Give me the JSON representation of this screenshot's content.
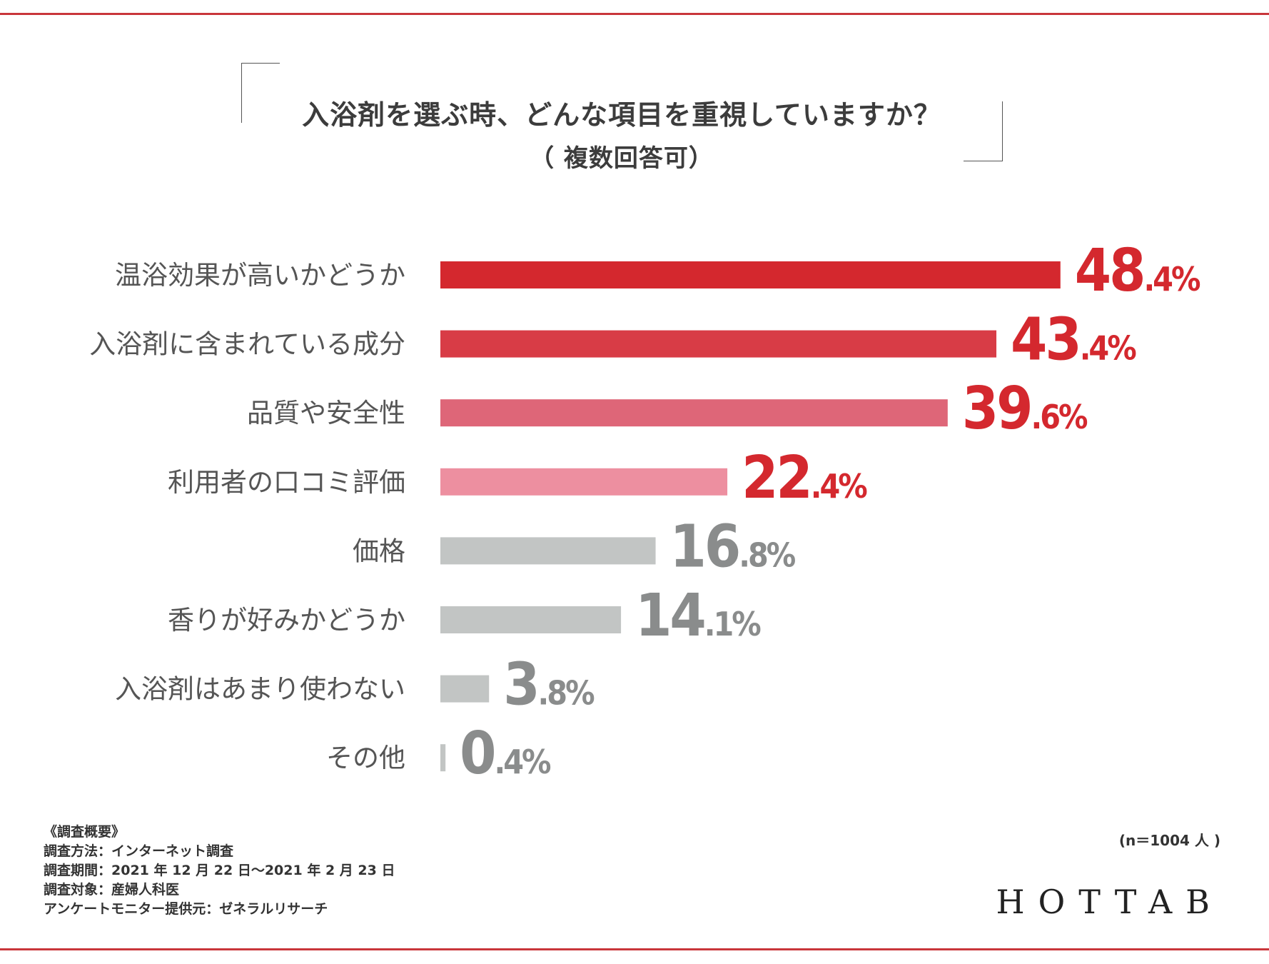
{
  "header": {
    "title": "入浴剤を選ぶ時、どんな項目を重視していますか？",
    "subtitle": "（ 複数回答可）"
  },
  "chart_data": {
    "type": "bar",
    "orientation": "horizontal",
    "title": "入浴剤を選ぶ時、どんな項目を重視していますか？",
    "subtitle": "（ 複数回答可）",
    "unit": "%",
    "xlim": [
      0,
      48.4
    ],
    "grid": false,
    "categories": [
      "温浴効果が高いかどうか",
      "入浴剤に含まれている成分",
      "品質や安全性",
      "利用者の口コミ評価",
      "価格",
      "香りが好みかどうか",
      "入浴剤はあまり使わない",
      "その他"
    ],
    "values": [
      48.4,
      43.4,
      39.6,
      22.4,
      16.8,
      14.1,
      3.8,
      0.4
    ],
    "bar_colors": [
      "#d4282e",
      "#d83c46",
      "#de6678",
      "#ed8fa0",
      "#c2c5c4",
      "#c2c5c4",
      "#c2c5c4",
      "#c2c5c4"
    ],
    "label_colors": [
      "#d4282e",
      "#d4282e",
      "#d4282e",
      "#d4282e",
      "#8a8c8c",
      "#8a8c8c",
      "#8a8c8c",
      "#8a8c8c"
    ]
  },
  "survey": {
    "heading": "《調査概要》",
    "method": "調査方法：インターネット調査",
    "period": "調査期間：2021 年 12 月 22 日〜2021 年 2 月 23 日",
    "target": "調査対象：産婦人科医",
    "provider": "アンケートモニター提供元：ゼネラルリサーチ"
  },
  "sample_size": "(n＝1004 人 )",
  "brand": "HOTTAB",
  "colors": {
    "accent": "#d4282e",
    "rule": "#c9363b"
  }
}
